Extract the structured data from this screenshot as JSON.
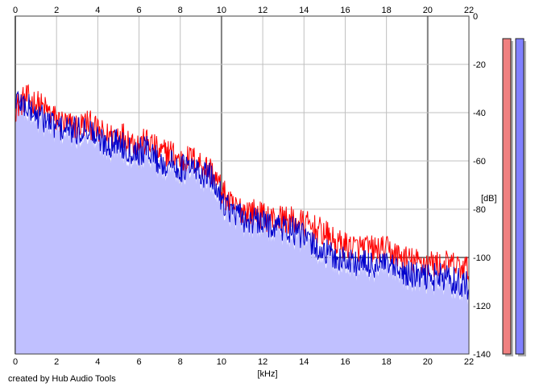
{
  "footer": {
    "credit": "created by Hub Audio Tools"
  },
  "chart_data": {
    "type": "area",
    "title": "",
    "xlabel": "[kHz]",
    "ylabel": "[dB]",
    "x_unit": "kHz",
    "y_unit": "dB",
    "xlim": [
      0,
      22
    ],
    "ylim": [
      -140,
      0
    ],
    "x_ticks": [
      0,
      2,
      4,
      6,
      8,
      10,
      12,
      14,
      16,
      18,
      20,
      22
    ],
    "y_ticks": [
      0,
      -20,
      -40,
      -60,
      -80,
      -100,
      -120,
      -140
    ],
    "x_tick_labels": [
      "0",
      "2",
      "4",
      "6",
      "8",
      "10",
      "12",
      "14",
      "16",
      "18",
      "20",
      "22"
    ],
    "y_tick_labels": [
      "0",
      "-20",
      "-40",
      "-60",
      "-80",
      "-100",
      "-120",
      "-140"
    ],
    "x_ticks_on_top": true,
    "x_ticks_on_bottom": true,
    "y_ticks_side": "right",
    "grid": true,
    "grid_color": "#c0c0c0",
    "major_grid_color": "#808080",
    "plot_background": "#ffffff",
    "fill_color": "#c0c0ff",
    "x": [
      0,
      0.5,
      1,
      1.5,
      2,
      2.5,
      3,
      3.5,
      4,
      4.5,
      5,
      5.5,
      6,
      6.5,
      7,
      7.5,
      8,
      8.5,
      9,
      9.5,
      10,
      10.5,
      11,
      11.5,
      12,
      12.5,
      13,
      13.5,
      14,
      14.5,
      15,
      15.5,
      16,
      16.5,
      17,
      17.5,
      18,
      18.5,
      19,
      19.5,
      20,
      20.5,
      21,
      21.5,
      22
    ],
    "series": [
      {
        "color": "#ff0000",
        "values": [
          -38,
          -34,
          -36,
          -39,
          -43,
          -45,
          -46,
          -44,
          -48,
          -50,
          -48,
          -51,
          -53,
          -52,
          -57,
          -56,
          -60,
          -59,
          -61,
          -64,
          -72,
          -79,
          -80,
          -81,
          -83,
          -84,
          -84,
          -85,
          -86,
          -88,
          -90,
          -94,
          -95,
          -96,
          -96,
          -97,
          -97,
          -99,
          -101,
          -102,
          -102,
          -103,
          -103,
          -104,
          -105
        ]
      },
      {
        "color": "#0000cc",
        "values": [
          -34,
          -37,
          -41,
          -43,
          -46,
          -47,
          -48,
          -46,
          -51,
          -53,
          -52,
          -55,
          -56,
          -55,
          -61,
          -61,
          -63,
          -63,
          -65,
          -67,
          -75,
          -81,
          -84,
          -85,
          -86,
          -86,
          -88,
          -89,
          -92,
          -95,
          -98,
          -100,
          -101,
          -102,
          -103,
          -103,
          -103,
          -106,
          -107,
          -108,
          -108,
          -108,
          -109,
          -110,
          -112
        ]
      }
    ],
    "level_meters": [
      {
        "color": "#f08080",
        "level_db": 0
      },
      {
        "color": "#8080ff",
        "level_db": 0
      }
    ]
  }
}
